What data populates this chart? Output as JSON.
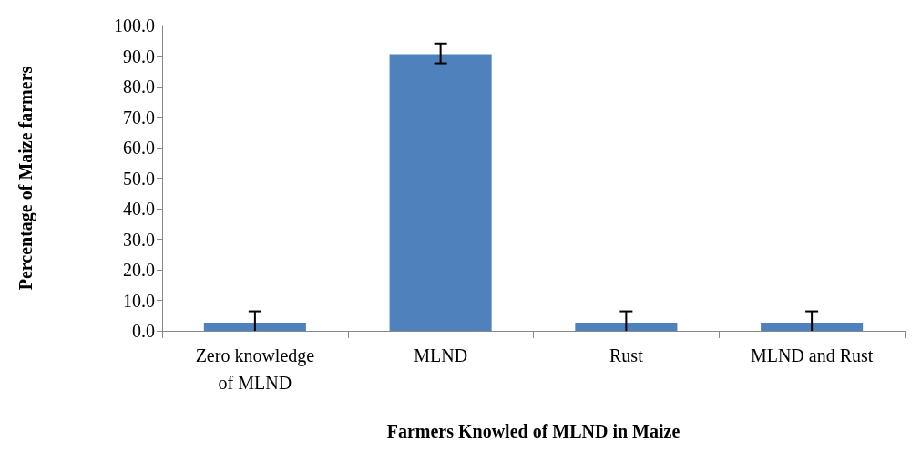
{
  "chart_data": {
    "type": "bar",
    "xlabel": "Farmers Knowled of MLND in Maize",
    "ylabel": "Percentage of Maize farmers",
    "categories": [
      "Zero knowledge\nof MLND",
      "MLND",
      "Rust",
      "MLND and Rust"
    ],
    "values": [
      2.7,
      90.6,
      2.7,
      2.7
    ],
    "errors": [
      [
        0,
        6.4
      ],
      [
        87.6,
        94.1
      ],
      [
        0,
        6.4
      ],
      [
        0,
        6.4
      ]
    ],
    "color": "#4f81bd",
    "ylim": [
      0,
      100
    ],
    "yticks": [
      {
        "value": 0,
        "label": "0.0"
      },
      {
        "value": 10,
        "label": "10.0"
      },
      {
        "value": 20,
        "label": "20.0"
      },
      {
        "value": 30,
        "label": "30.0"
      },
      {
        "value": 40,
        "label": "40.0"
      },
      {
        "value": 50,
        "label": "50.0"
      },
      {
        "value": 60,
        "label": "60.0"
      },
      {
        "value": 70,
        "label": "70.0"
      },
      {
        "value": 80,
        "label": "80.0"
      },
      {
        "value": 90,
        "label": "90.0"
      },
      {
        "value": 100,
        "label": "100.0"
      }
    ],
    "grid": false
  }
}
